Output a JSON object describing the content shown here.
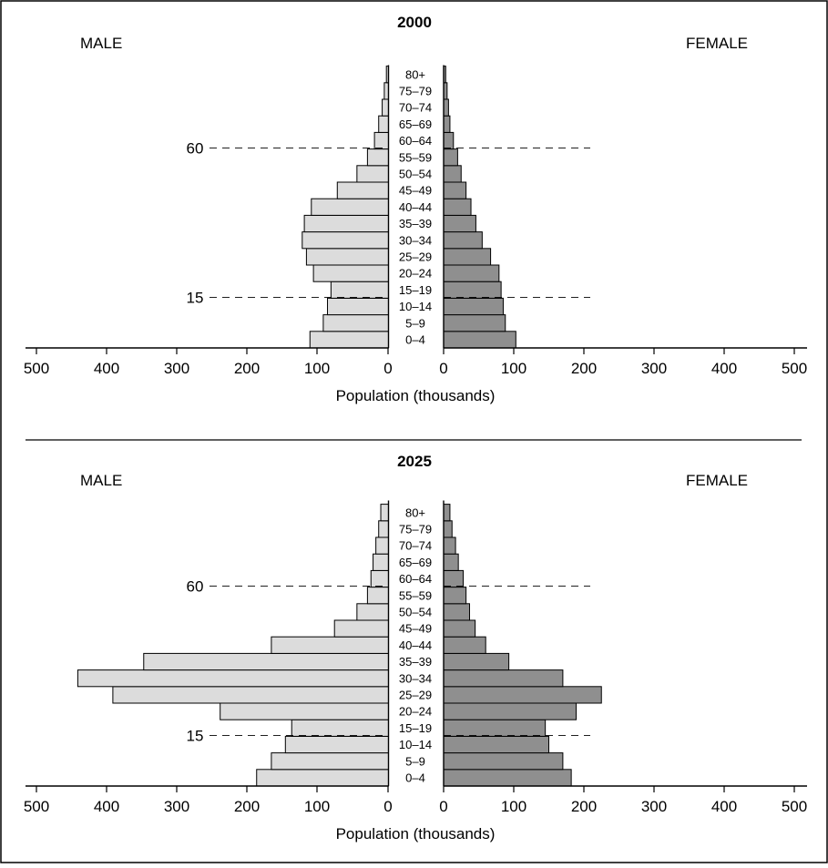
{
  "chart_data": [
    {
      "type": "bar",
      "orientation": "horizontal-population-pyramid",
      "title": "2000",
      "left_label": "MALE",
      "right_label": "FEMALE",
      "xlabel": "Population (thousands)",
      "xlim": [
        0,
        500
      ],
      "x_ticks": [
        "500",
        "400",
        "300",
        "200",
        "100",
        "0"
      ],
      "x_ticks_right": [
        "0",
        "100",
        "200",
        "300",
        "400",
        "500"
      ],
      "categories": [
        "0–4",
        "5–9",
        "10–14",
        "15–19",
        "20–24",
        "25–29",
        "30–34",
        "35–39",
        "40–44",
        "45–49",
        "50–54",
        "55–59",
        "60–64",
        "65–69",
        "70–74",
        "75–79",
        "80+"
      ],
      "series": [
        {
          "name": "MALE",
          "values": [
            112,
            93,
            87,
            82,
            107,
            117,
            123,
            120,
            110,
            73,
            45,
            30,
            20,
            14,
            9,
            6,
            3
          ]
        },
        {
          "name": "FEMALE",
          "values": [
            103,
            88,
            85,
            82,
            79,
            67,
            55,
            46,
            39,
            32,
            25,
            20,
            14,
            9,
            7,
            5,
            3
          ]
        }
      ],
      "reference_lines": [
        {
          "label": "60",
          "at_group": "60–64"
        },
        {
          "label": "15",
          "at_group": "15–19"
        }
      ]
    },
    {
      "type": "bar",
      "orientation": "horizontal-population-pyramid",
      "title": "2025",
      "left_label": "MALE",
      "right_label": "FEMALE",
      "xlabel": "Population (thousands)",
      "xlim": [
        0,
        500
      ],
      "x_ticks": [
        "500",
        "400",
        "300",
        "200",
        "100",
        "0"
      ],
      "x_ticks_right": [
        "0",
        "100",
        "200",
        "300",
        "400",
        "500"
      ],
      "categories": [
        "0–4",
        "5–9",
        "10–14",
        "15–19",
        "20–24",
        "25–29",
        "30–34",
        "35–39",
        "40–44",
        "45–49",
        "50–54",
        "55–59",
        "60–64",
        "65–69",
        "70–74",
        "75–79",
        "80+"
      ],
      "series": [
        {
          "name": "MALE",
          "values": [
            188,
            167,
            147,
            138,
            240,
            393,
            443,
            349,
            167,
            77,
            45,
            30,
            25,
            22,
            18,
            14,
            11
          ]
        },
        {
          "name": "FEMALE",
          "values": [
            182,
            170,
            150,
            145,
            189,
            225,
            170,
            93,
            60,
            45,
            37,
            32,
            28,
            21,
            17,
            12,
            9
          ]
        }
      ],
      "reference_lines": [
        {
          "label": "60",
          "at_group": "60–64"
        },
        {
          "label": "15",
          "at_group": "15–19"
        }
      ]
    }
  ]
}
